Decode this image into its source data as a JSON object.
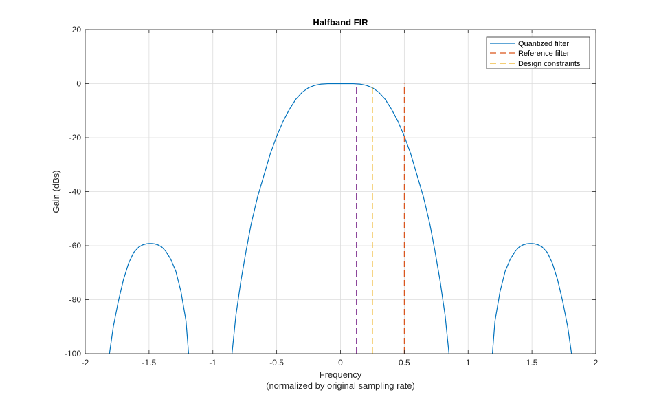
{
  "chart_data": {
    "type": "line",
    "title": "Halfband FIR",
    "xlabel_line1": "Frequency",
    "xlabel_line2": "(normalized by original sampling rate)",
    "ylabel": "Gain (dBs)",
    "xlim": [
      -2,
      2
    ],
    "ylim": [
      -100,
      20
    ],
    "xticks": [
      -2,
      -1.5,
      -1,
      -0.5,
      0,
      0.5,
      1,
      1.5,
      2
    ],
    "xtick_labels": [
      "-2",
      "-1.5",
      "-1",
      "-0.5",
      "0",
      "0.5",
      "1",
      "1.5",
      "2"
    ],
    "yticks": [
      -100,
      -80,
      -60,
      -40,
      -20,
      0,
      20
    ],
    "ytick_labels": [
      "-100",
      "-80",
      "-60",
      "-40",
      "-20",
      "0",
      "20"
    ],
    "grid": true,
    "legend_position": "top-right",
    "series": [
      {
        "name": "Quantized filter",
        "style": "solid",
        "color": "#0072BD",
        "segments": [
          {
            "x": [
              -1.81,
              -1.78,
              -1.74,
              -1.7,
              -1.66,
              -1.62,
              -1.58,
              -1.55,
              -1.52,
              -1.5,
              -1.48,
              -1.46,
              -1.43,
              -1.4,
              -1.37,
              -1.33,
              -1.29,
              -1.25,
              -1.21,
              -1.19
            ],
            "y": [
              -100,
              -90,
              -80.5,
              -72.5,
              -66.5,
              -62.5,
              -60.5,
              -59.7,
              -59.3,
              -59.2,
              -59.2,
              -59.3,
              -59.7,
              -60.5,
              -62,
              -65,
              -69.5,
              -77,
              -88,
              -100
            ]
          },
          {
            "x": [
              -0.85,
              -0.82,
              -0.78,
              -0.74,
              -0.7,
              -0.65,
              -0.6,
              -0.55,
              -0.5,
              -0.45,
              -0.4,
              -0.35,
              -0.3,
              -0.25,
              -0.2,
              -0.15,
              -0.1,
              -0.05,
              0,
              0.05,
              0.1,
              0.15,
              0.2,
              0.25,
              0.3,
              0.35,
              0.4,
              0.45,
              0.5,
              0.55,
              0.6,
              0.65,
              0.7,
              0.74,
              0.78,
              0.82,
              0.85
            ],
            "y": [
              -100,
              -86,
              -73,
              -62,
              -52,
              -42,
              -34,
              -26,
              -19.5,
              -14,
              -9.5,
              -5.8,
              -3.2,
              -1.5,
              -0.6,
              -0.15,
              -0.02,
              0,
              0,
              0,
              -0.02,
              -0.15,
              -0.6,
              -1.5,
              -3.2,
              -5.8,
              -9.5,
              -14,
              -19.5,
              -26,
              -34,
              -42,
              -52,
              -62,
              -73,
              -86,
              -100
            ]
          },
          {
            "x": [
              1.19,
              1.21,
              1.25,
              1.29,
              1.33,
              1.37,
              1.4,
              1.43,
              1.46,
              1.48,
              1.5,
              1.52,
              1.55,
              1.58,
              1.62,
              1.66,
              1.7,
              1.74,
              1.78,
              1.81
            ],
            "y": [
              -100,
              -88,
              -77,
              -69.5,
              -65,
              -62,
              -60.5,
              -59.7,
              -59.3,
              -59.2,
              -59.2,
              -59.3,
              -59.7,
              -60.5,
              -62.5,
              -66.5,
              -72.5,
              -80.5,
              -90,
              -100
            ]
          }
        ]
      },
      {
        "name": "Reference filter",
        "style": "dashed",
        "color": "#D95319",
        "x": [
          0.5,
          0.5
        ],
        "y": [
          -100,
          0
        ]
      },
      {
        "name": "Design constraints",
        "style": "dashed",
        "color": "#EDB120",
        "x": [
          0.25,
          0.25
        ],
        "y": [
          -100,
          0
        ]
      },
      {
        "name": "",
        "style": "dashed",
        "color": "#7E2F8E",
        "x": [
          0.125,
          0.125
        ],
        "y": [
          -100,
          0
        ]
      }
    ]
  }
}
